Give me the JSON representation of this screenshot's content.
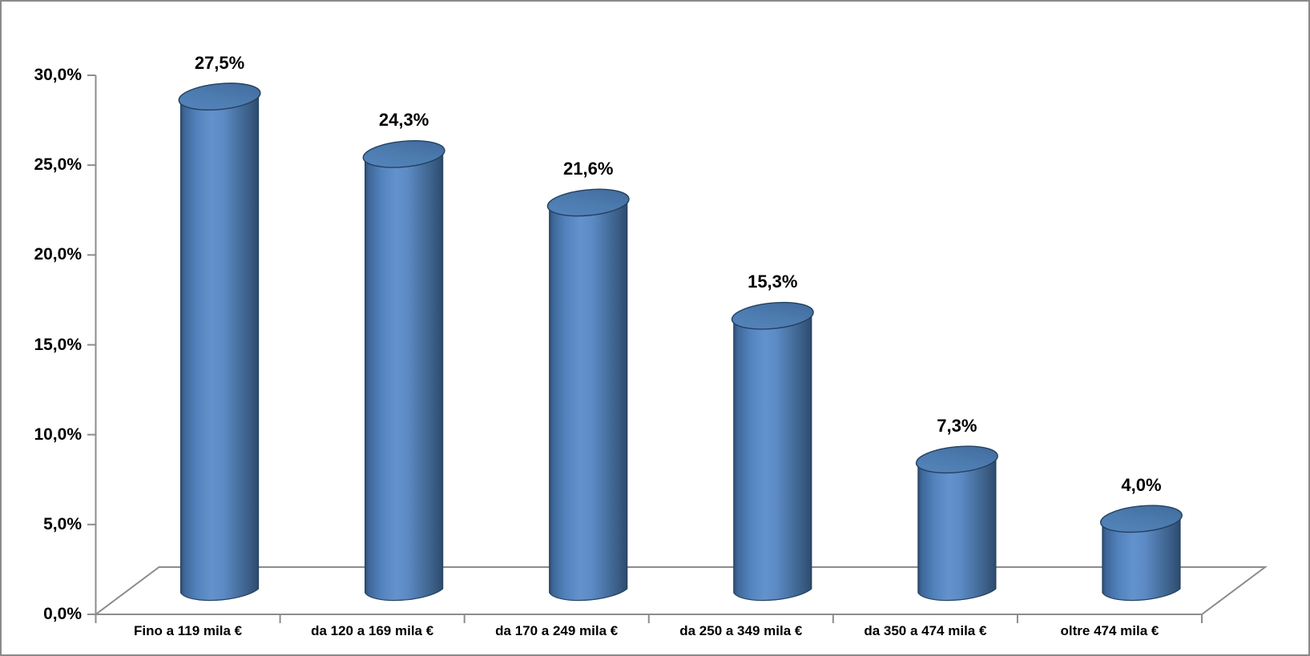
{
  "chart_data": {
    "type": "bar",
    "subtype": "3d-cylinder",
    "title": "",
    "xlabel": "",
    "ylabel": "",
    "categories": [
      "Fino a 119 mila €",
      "da 120 a 169 mila €",
      "da 170 a 249 mila €",
      "da 250 a 349 mila €",
      "da 350 a 474 mila €",
      "oltre 474 mila €"
    ],
    "values": [
      27.5,
      24.3,
      21.6,
      15.3,
      7.3,
      4.0
    ],
    "data_labels": [
      "27,5%",
      "24,3%",
      "21,6%",
      "15,3%",
      "7,3%",
      "4,0%"
    ],
    "ylim": [
      0,
      30
    ],
    "ytick_step": 5,
    "ytick_labels": [
      "0,0%",
      "5,0%",
      "10,0%",
      "15,0%",
      "20,0%",
      "25,0%",
      "30,0%"
    ],
    "grid": false,
    "legend": false,
    "colors": {
      "bar_body_dark_edge": "#2e4e76",
      "bar_body_light_center": "#6392cc",
      "bar_top_face": "#4c7bAF",
      "bar_outline": "#24415f",
      "axis_line": "#8c8c8c",
      "label_text": "#000000",
      "background": "#ffffff",
      "frame_border": "#8a8a8a"
    }
  }
}
